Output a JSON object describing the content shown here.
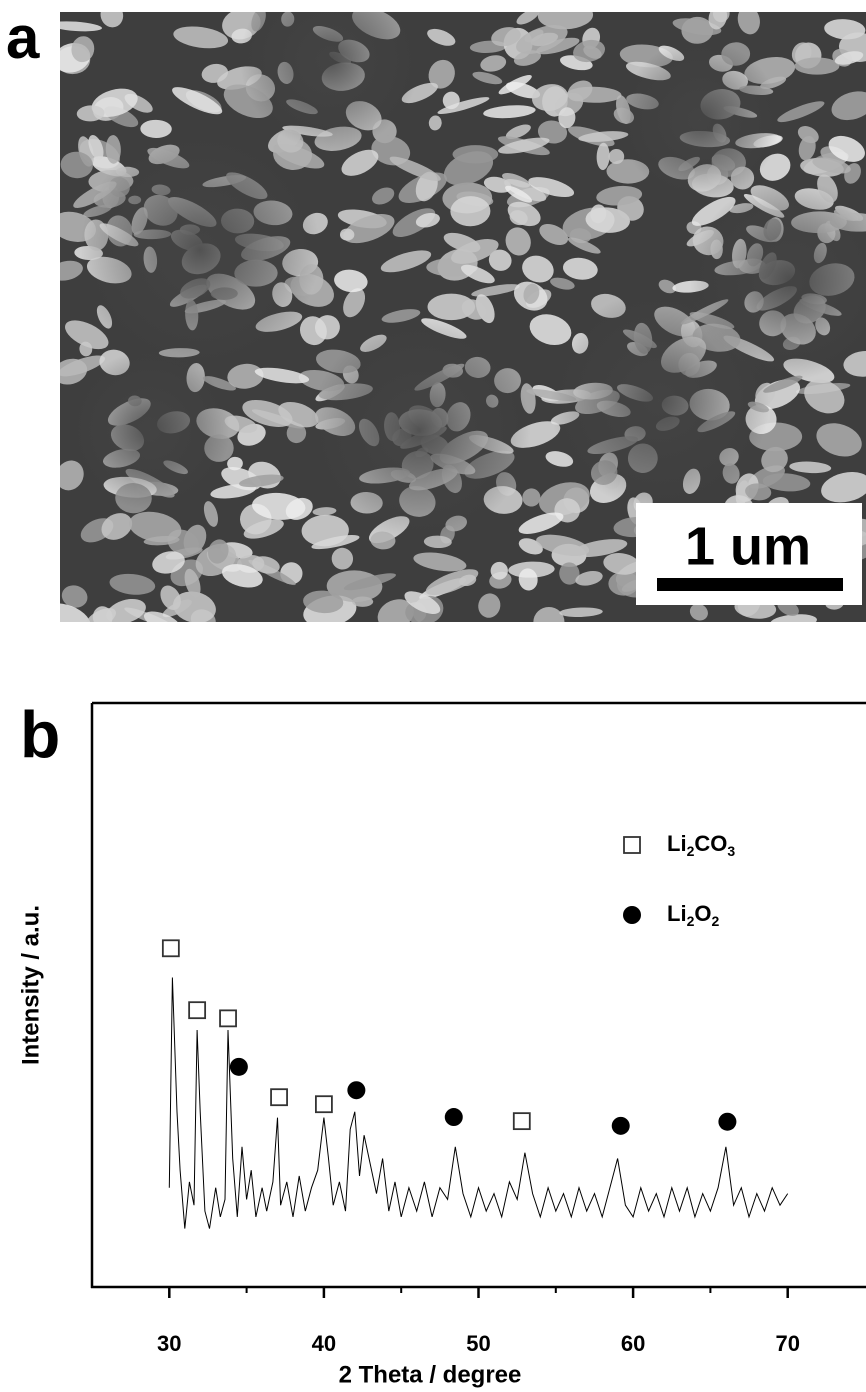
{
  "panels": {
    "a": {
      "label": "a",
      "scale_bar_label": "1 um"
    }
  },
  "chart_data": {
    "type": "line",
    "panel_label": "b",
    "xlabel": "2 Theta / degree",
    "ylabel": "Intensity / a.u.",
    "xlim": [
      25,
      75
    ],
    "ylim": [
      0,
      100
    ],
    "xticks": [
      30,
      40,
      50,
      60,
      70
    ],
    "xminorticks": [
      35,
      45,
      55,
      65
    ],
    "color": "#000000",
    "x": [
      30.0,
      30.2,
      30.5,
      30.7,
      31.0,
      31.3,
      31.6,
      31.8,
      32.0,
      32.3,
      32.6,
      33.0,
      33.3,
      33.6,
      33.8,
      34.1,
      34.4,
      34.7,
      35.0,
      35.3,
      35.6,
      36.0,
      36.3,
      36.7,
      37.0,
      37.2,
      37.6,
      38.0,
      38.4,
      38.8,
      39.2,
      39.6,
      40.0,
      40.3,
      40.6,
      41.0,
      41.4,
      41.7,
      42.0,
      42.3,
      42.6,
      43.0,
      43.4,
      43.8,
      44.2,
      44.6,
      45.0,
      45.5,
      46.0,
      46.5,
      47.0,
      47.5,
      48.0,
      48.5,
      49.0,
      49.5,
      50.0,
      50.5,
      51.0,
      51.5,
      52.0,
      52.5,
      53.0,
      53.5,
      54.0,
      54.5,
      55.0,
      55.5,
      56.0,
      56.5,
      57.0,
      57.5,
      58.0,
      58.5,
      59.0,
      59.5,
      60.0,
      60.5,
      61.0,
      61.5,
      62.0,
      62.5,
      63.0,
      63.5,
      64.0,
      64.5,
      65.0,
      65.5,
      66.0,
      66.5,
      67.0,
      67.5,
      68.0,
      68.5,
      69.0,
      69.5,
      70.0
    ],
    "values": [
      17,
      53,
      30,
      20,
      10,
      18,
      14,
      44,
      30,
      13,
      10,
      17,
      12,
      15,
      44,
      22,
      12,
      24,
      15,
      20,
      12,
      17,
      13,
      18,
      29,
      14,
      18,
      12,
      19,
      13,
      17,
      20,
      29,
      22,
      14,
      18,
      13,
      27,
      30,
      19,
      26,
      21,
      16,
      22,
      13,
      18,
      12,
      17,
      13,
      18,
      12,
      17,
      15,
      24,
      16,
      12,
      17,
      13,
      16,
      12,
      18,
      15,
      23,
      16,
      12,
      17,
      13,
      16,
      12,
      17,
      13,
      16,
      12,
      17,
      22,
      14,
      12,
      17,
      13,
      16,
      12,
      17,
      13,
      17,
      12,
      16,
      13,
      17,
      24,
      14,
      17,
      12,
      16,
      13,
      17,
      14,
      16
    ],
    "series": [
      {
        "name": "Li2CO3",
        "marker": "square",
        "color": "#333333",
        "x": [
          30.1,
          31.8,
          33.8,
          37.1,
          40.0,
          52.8
        ],
        "values": [
          58,
          47.4,
          46,
          32.5,
          31.3,
          28.4
        ]
      },
      {
        "name": "Li2O2",
        "marker": "circle",
        "color": "#000000",
        "x": [
          34.5,
          42.1,
          48.4,
          59.2,
          66.1
        ],
        "values": [
          37.7,
          33.7,
          29.1,
          27.6,
          28.3
        ]
      }
    ]
  }
}
